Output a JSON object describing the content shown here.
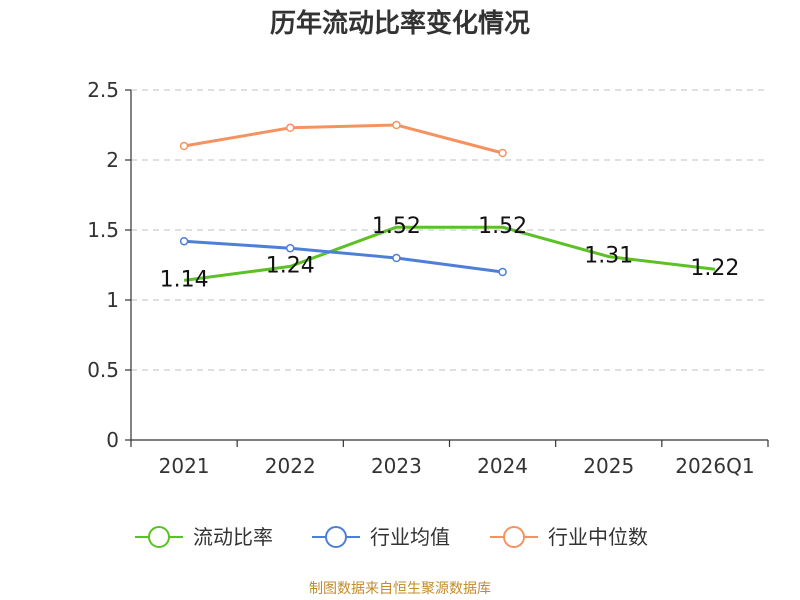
{
  "chart_data": {
    "type": "line",
    "title": "历年流动比率变化情况",
    "categories": [
      "2021",
      "2022",
      "2023",
      "2024",
      "2025",
      "2026Q1"
    ],
    "ylim": [
      0,
      2.5
    ],
    "yticks": [
      "0",
      "0.5",
      "1",
      "1.5",
      "2",
      "2.5"
    ],
    "grid": true,
    "legend_position": "bottom",
    "series": [
      {
        "name": "流动比率",
        "color": "#5bc124",
        "values": [
          1.14,
          1.24,
          1.52,
          1.52,
          1.31,
          1.22
        ],
        "labels": [
          "1.14",
          "1.24",
          "1.52",
          "1.52",
          "1.31",
          "1.22"
        ]
      },
      {
        "name": "行业均值",
        "color": "#4e7fd6",
        "values": [
          1.42,
          1.37,
          1.3,
          1.2,
          null,
          null
        ]
      },
      {
        "name": "行业中位数",
        "color": "#f59360",
        "values": [
          2.1,
          2.23,
          2.25,
          2.05,
          null,
          null
        ]
      }
    ]
  },
  "footer": {
    "source": "制图数据来自恒生聚源数据库"
  }
}
